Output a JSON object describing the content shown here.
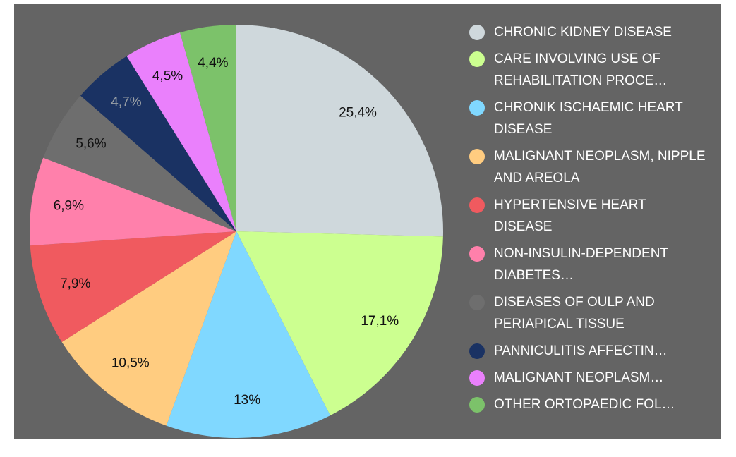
{
  "chart_data": {
    "type": "pie",
    "categories": [
      "CHRONIC KIDNEY DISEASE",
      "CARE INVOLVING USE OF REHABILITATION PROCE…",
      "CHRONIK ISCHAEMIC HEART DISEASE",
      "MALIGNANT NEOPLASM, NIPPLE AND AREOLA",
      "HYPERTENSIVE HEART DISEASE",
      "NON-INSULIN-DEPENDENT DIABETES…",
      "DISEASES OF OULP AND PERIAPICAL TISSUE",
      "PANNICULITIS AFFECTIN…",
      "MALIGNANT NEOPLASM…",
      "OTHER ORTOPAEDIC FOL…"
    ],
    "values": [
      25.4,
      17.1,
      13,
      10.5,
      7.9,
      6.9,
      5.6,
      4.7,
      4.5,
      4.4
    ],
    "value_labels": [
      "25,4%",
      "17,1%",
      "13%",
      "10,5%",
      "7,9%",
      "6,9%",
      "5,6%",
      "4,7%",
      "4,5%",
      "4,4%"
    ],
    "colors": [
      "#cfd8dc",
      "#ccff90",
      "#80d8ff",
      "#ffcc80",
      "#f05a5f",
      "#ff80ab",
      "#6e6e6e",
      "#1a3263",
      "#ea80fc",
      "#7cc26a"
    ],
    "legend": "right"
  }
}
